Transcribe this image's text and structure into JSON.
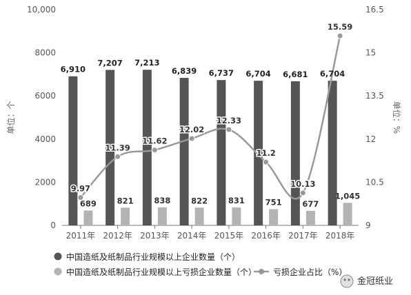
{
  "chart_data": {
    "type": "bar",
    "categories": [
      "2011年",
      "2012年",
      "2013年",
      "2014年",
      "2015年",
      "2016年",
      "2017年",
      "2018年"
    ],
    "series": [
      {
        "name": "中国造纸及纸制品行业规模以上企业数量（个）",
        "type": "bar",
        "axis": "left",
        "color": "#555555",
        "values": [
          6910,
          7207,
          7213,
          6839,
          6737,
          6704,
          6681,
          6704
        ],
        "labels": [
          "6,910",
          "7,207",
          "7,213",
          "6,839",
          "6,737",
          "6,704",
          "6,681",
          "6,704"
        ]
      },
      {
        "name": "中国造纸及纸制品行业规模以上亏损企业数量（个）",
        "type": "bar",
        "axis": "left",
        "color": "#b3b3b3",
        "values": [
          689,
          821,
          838,
          822,
          831,
          751,
          677,
          1045
        ],
        "labels": [
          "689",
          "821",
          "838",
          "822",
          "831",
          "751",
          "677",
          "1,045"
        ]
      },
      {
        "name": "亏损企业占比（%）",
        "type": "line",
        "axis": "right",
        "color": "#999999",
        "values": [
          9.97,
          11.39,
          11.62,
          12.02,
          12.33,
          11.2,
          10.13,
          15.59
        ],
        "labels": [
          "9.97",
          "11.39",
          "11.62",
          "12.02",
          "12.33",
          "11.2",
          "10.13",
          "15.59"
        ]
      }
    ],
    "y_left": {
      "label": "单位：个",
      "min": 0,
      "max": 10000,
      "ticks": [
        0,
        2000,
        4000,
        6000,
        8000,
        10000
      ],
      "tick_labels": [
        "0",
        "2000",
        "4000",
        "6000",
        "8000",
        "10,000"
      ]
    },
    "y_right": {
      "label": "单位：%",
      "min": 9,
      "max": 16.5,
      "ticks": [
        9,
        10.5,
        12,
        13.5,
        15,
        16.5
      ],
      "tick_labels": [
        "9",
        "10.5",
        "12",
        "13.5",
        "15",
        "16.5"
      ]
    },
    "grid": false,
    "legend_position": "bottom-left"
  },
  "watermark": {
    "text": "金冠纸业"
  }
}
